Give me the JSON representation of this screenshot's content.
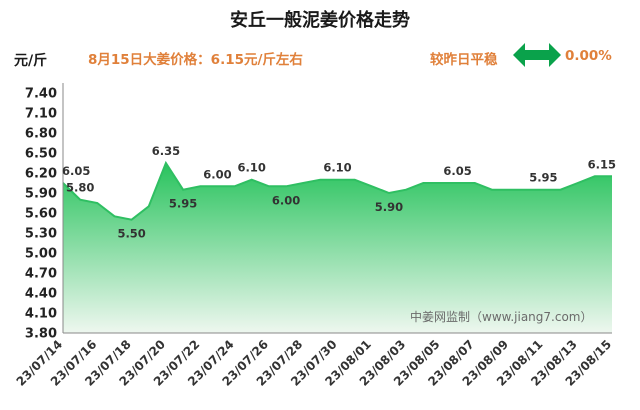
{
  "header": {
    "title": "安丘一般泥姜价格走势",
    "unit": "元/斤",
    "price_note": "8月15日大姜价格：6.15元/斤左右",
    "compare_label": "较昨日平稳",
    "compare_value": "0.00%",
    "arrow_icon": "double-arrow-icon",
    "watermark": "中姜网监制（www.jiang7.com）"
  },
  "colors": {
    "accent_orange": "#e0803a",
    "line_green": "#2fbf62",
    "fill_top": "#28c35d",
    "fill_bottom": "#eef7ef",
    "arrow_green": "#0aa24b"
  },
  "chart_data": {
    "type": "area",
    "title": "安丘一般泥姜价格走势",
    "ylabel": "元/斤",
    "ylim": [
      3.8,
      7.4
    ],
    "yticks": [
      "7.40",
      "7.10",
      "6.80",
      "6.50",
      "6.20",
      "5.90",
      "5.60",
      "5.30",
      "5.00",
      "4.70",
      "4.40",
      "4.10",
      "3.80"
    ],
    "x_tick_labels": [
      "23/07/14",
      "23/07/16",
      "23/07/18",
      "23/07/20",
      "23/07/22",
      "23/07/24",
      "23/07/26",
      "23/07/28",
      "23/07/30",
      "23/08/01",
      "23/08/03",
      "23/08/05",
      "23/08/07",
      "23/08/09",
      "23/08/11",
      "23/08/13",
      "23/08/15"
    ],
    "x": [
      "07/14",
      "07/15",
      "07/16",
      "07/17",
      "07/18",
      "07/19",
      "07/20",
      "07/21",
      "07/22",
      "07/23",
      "07/24",
      "07/25",
      "07/26",
      "07/27",
      "07/28",
      "07/29",
      "07/30",
      "07/31",
      "08/01",
      "08/02",
      "08/03",
      "08/04",
      "08/05",
      "08/06",
      "08/07",
      "08/08",
      "08/09",
      "08/10",
      "08/11",
      "08/12",
      "08/13",
      "08/14",
      "08/15"
    ],
    "values": [
      6.05,
      5.8,
      5.75,
      5.55,
      5.5,
      5.7,
      6.35,
      5.95,
      6.0,
      6.0,
      6.0,
      6.1,
      6.0,
      6.0,
      6.05,
      6.1,
      6.1,
      6.1,
      6.0,
      5.9,
      5.95,
      6.05,
      6.05,
      6.05,
      6.05,
      5.95,
      5.95,
      5.95,
      5.95,
      5.95,
      6.05,
      6.15,
      6.15
    ],
    "labels": [
      {
        "index": 0,
        "text": "6.05"
      },
      {
        "index": 1,
        "text": "5.80"
      },
      {
        "index": 4,
        "text": "5.50"
      },
      {
        "index": 6,
        "text": "6.35"
      },
      {
        "index": 7,
        "text": "5.95"
      },
      {
        "index": 9,
        "text": "6.00"
      },
      {
        "index": 11,
        "text": "6.10"
      },
      {
        "index": 13,
        "text": "6.00"
      },
      {
        "index": 16,
        "text": "6.10"
      },
      {
        "index": 19,
        "text": "5.90"
      },
      {
        "index": 23,
        "text": "6.05"
      },
      {
        "index": 28,
        "text": "5.95"
      },
      {
        "index": 32,
        "text": "6.15"
      }
    ],
    "grid": false
  }
}
